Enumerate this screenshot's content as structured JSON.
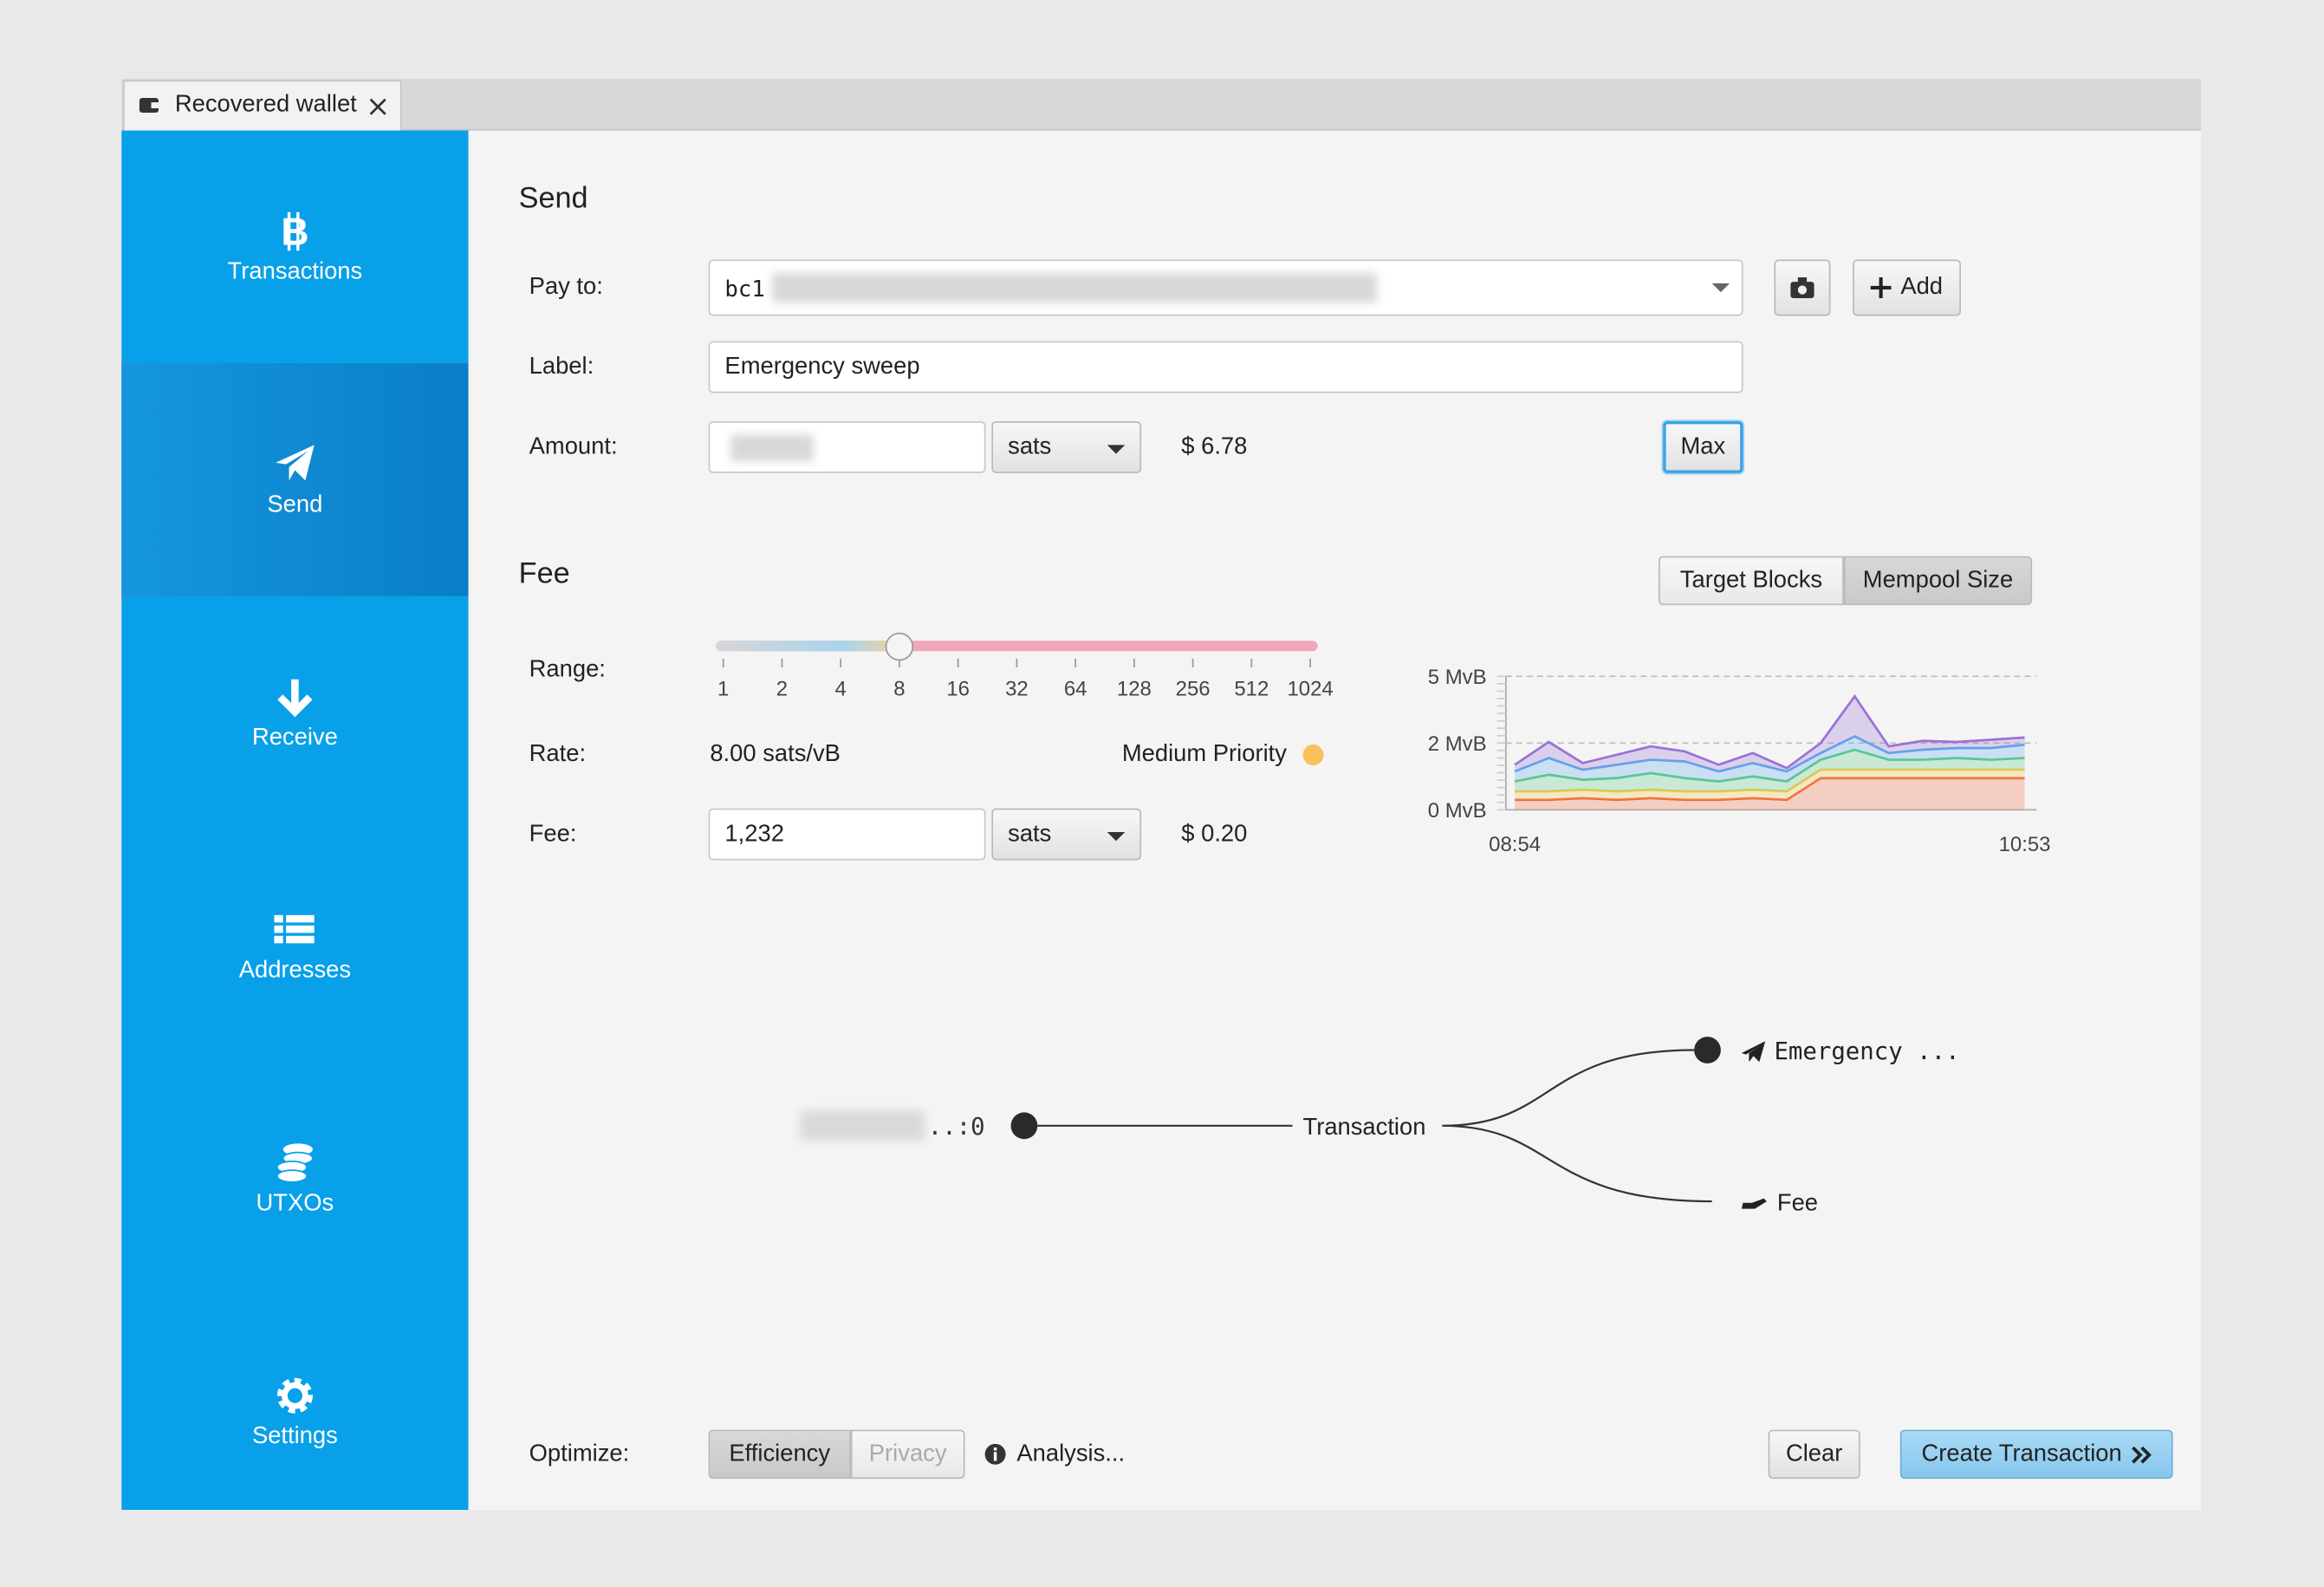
{
  "tab": {
    "title": "Recovered wallet"
  },
  "sidebar": {
    "items": [
      "Transactions",
      "Send",
      "Receive",
      "Addresses",
      "UTXOs",
      "Settings"
    ],
    "selected": "Send"
  },
  "send": {
    "heading": "Send",
    "pay_to_label": "Pay to:",
    "pay_to_value": "bc1",
    "add_button": "Add",
    "label_label": "Label:",
    "label_value": "Emergency sweep",
    "amount_label": "Amount:",
    "amount_unit": "sats",
    "amount_fiat": "$ 6.78",
    "max_button": "Max"
  },
  "fee": {
    "heading": "Fee",
    "tabs": [
      "Target Blocks",
      "Mempool Size"
    ],
    "active_tab": "Mempool Size",
    "range_label": "Range:",
    "range_ticks": [
      1,
      2,
      4,
      8,
      16,
      32,
      64,
      128,
      256,
      512,
      1024
    ],
    "range_value": 8,
    "rate_label": "Rate:",
    "rate_value": "8.00 sats/vB",
    "priority": "Medium Priority",
    "fee_label": "Fee:",
    "fee_value": "1,232",
    "fee_unit": "sats",
    "fee_fiat": "$ 0.20"
  },
  "chart_data": {
    "type": "area",
    "categories": [
      "08:54",
      null,
      null,
      null,
      null,
      null,
      null,
      null,
      null,
      null,
      null,
      null,
      null,
      null,
      null,
      "10:53"
    ],
    "ylim": [
      0,
      5
    ],
    "yticks": [
      {
        "value": 5,
        "label": "5 MvB"
      },
      {
        "value": 2,
        "label": "2 MvB"
      },
      {
        "value": 0,
        "label": "0 MvB"
      }
    ],
    "series": [
      {
        "color": "#f06a3c",
        "values": [
          0.3,
          0.3,
          0.35,
          0.3,
          0.35,
          0.3,
          0.3,
          0.35,
          0.3,
          0.95,
          0.95,
          0.95,
          0.95,
          0.95,
          0.95,
          0.95
        ]
      },
      {
        "color": "#f2c84b",
        "values": [
          0.25,
          0.25,
          0.25,
          0.25,
          0.25,
          0.25,
          0.25,
          0.25,
          0.25,
          0.25,
          0.25,
          0.25,
          0.25,
          0.25,
          0.25,
          0.25
        ]
      },
      {
        "color": "#5cc98a",
        "values": [
          0.3,
          0.5,
          0.3,
          0.4,
          0.5,
          0.4,
          0.3,
          0.4,
          0.3,
          0.3,
          0.6,
          0.3,
          0.3,
          0.35,
          0.3,
          0.35
        ]
      },
      {
        "color": "#5ea8ec",
        "values": [
          0.3,
          0.5,
          0.3,
          0.4,
          0.4,
          0.5,
          0.3,
          0.4,
          0.3,
          0.2,
          0.5,
          0.2,
          0.3,
          0.3,
          0.35,
          0.4
        ]
      },
      {
        "color": "#9a72d6",
        "values": [
          0.2,
          0.5,
          0.2,
          0.3,
          0.4,
          0.3,
          0.2,
          0.3,
          0.1,
          0.3,
          1.8,
          0.2,
          0.3,
          0.2,
          0.3,
          0.3
        ]
      }
    ]
  },
  "diagram": {
    "input": "..:0",
    "center": "Transaction",
    "outputs": [
      "Emergency ...",
      "Fee"
    ]
  },
  "footer": {
    "optimize_label": "Optimize:",
    "options": [
      "Efficiency",
      "Privacy"
    ],
    "active": "Efficiency",
    "analysis": "Analysis...",
    "clear": "Clear",
    "create": "Create Transaction"
  }
}
